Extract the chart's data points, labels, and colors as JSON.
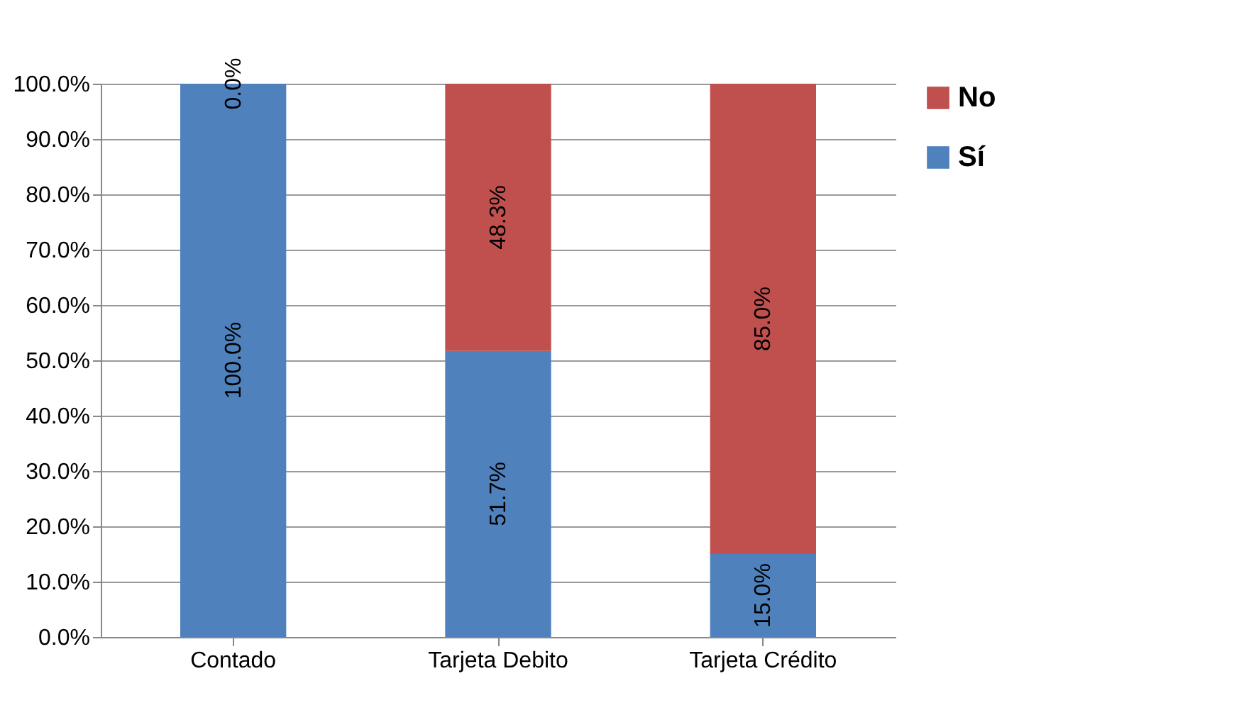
{
  "chart_data": {
    "type": "bar",
    "stacked": true,
    "categories": [
      "Contado",
      "Tarjeta Debito",
      "Tarjeta Crédito"
    ],
    "series": [
      {
        "name": "Sí",
        "color": "#4f81bd",
        "values": [
          100.0,
          51.7,
          15.0
        ],
        "value_labels": [
          "100.0%",
          "51.7%",
          "15.0%"
        ]
      },
      {
        "name": "No",
        "color": "#c0504d",
        "values": [
          0.0,
          48.3,
          85.0
        ],
        "value_labels": [
          "0.0%",
          "48.3%",
          "85.0%"
        ]
      }
    ],
    "ylim": [
      0,
      100
    ],
    "yticks": [
      {
        "value": 0,
        "label": "0.0%"
      },
      {
        "value": 10,
        "label": "10.0%"
      },
      {
        "value": 20,
        "label": "20.0%"
      },
      {
        "value": 30,
        "label": "30.0%"
      },
      {
        "value": 40,
        "label": "40.0%"
      },
      {
        "value": 50,
        "label": "50.0%"
      },
      {
        "value": 60,
        "label": "60.0%"
      },
      {
        "value": 70,
        "label": "70.0%"
      },
      {
        "value": 80,
        "label": "80.0%"
      },
      {
        "value": 90,
        "label": "90.0%"
      },
      {
        "value": 100,
        "label": "100.0%"
      }
    ],
    "grid": "y",
    "legend": "right"
  }
}
